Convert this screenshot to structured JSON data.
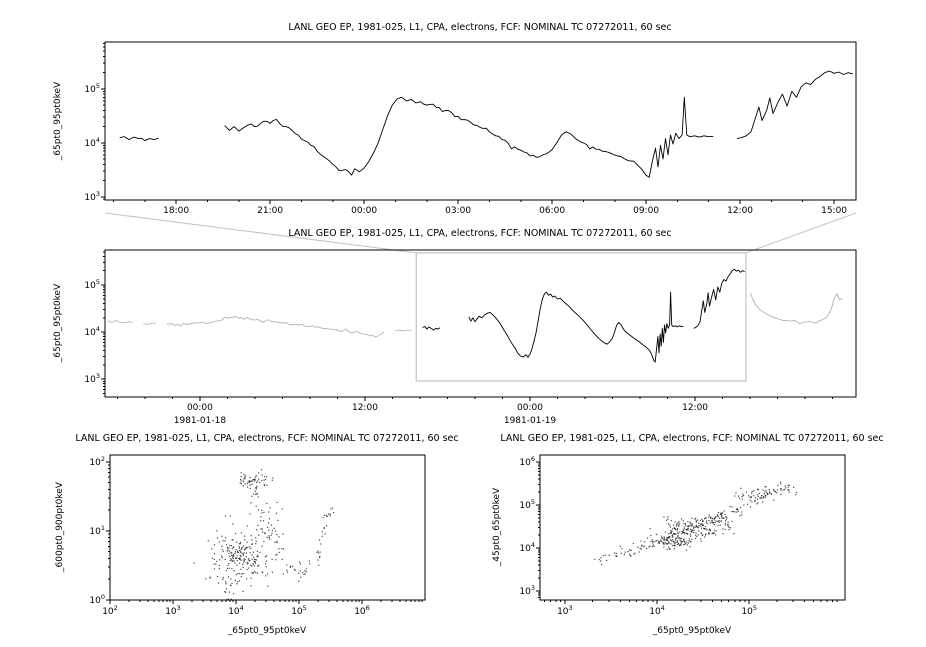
{
  "figure": {
    "background": "#ffffff",
    "foreground": "#000000",
    "context_gray": "#b3b3b3",
    "zoom_box_gray": "#c2c2c2",
    "scatter_dot": "#1a1a1a"
  },
  "chart_data": [
    {
      "type": "line",
      "panel": "top-timeseries",
      "title": "LANL GEO EP, 1981-025, L1, CPA, electrons, FCF: NOMINAL TC 07272011, 60 sec",
      "xlabel": "",
      "ylabel": "_65pt0_95pt0keV",
      "x_unit": "hours from 1981-01-18 00:00",
      "xlim": [
        15.73,
        39.7
      ],
      "ylim_log10": [
        2.94,
        5.87
      ],
      "yticks_log10": [
        3,
        4,
        5
      ],
      "xticks": [
        {
          "x": 18,
          "label": "18:00"
        },
        {
          "x": 21,
          "label": "21:00"
        },
        {
          "x": 24,
          "label": "00:00"
        },
        {
          "x": 27,
          "label": "03:00"
        },
        {
          "x": 30,
          "label": "06:00"
        },
        {
          "x": 33,
          "label": "09:00"
        },
        {
          "x": 36,
          "label": "12:00"
        },
        {
          "x": 39,
          "label": "15:00"
        }
      ],
      "minor_x_step": 1,
      "grid": false,
      "noise_log10": 0.03,
      "noise_seed": 3,
      "segments": [
        [
          [
            16.2,
            12500
          ],
          [
            16.35,
            13000
          ],
          [
            16.5,
            11500
          ],
          [
            16.65,
            12800
          ],
          [
            16.8,
            12000
          ],
          [
            17.0,
            11000
          ],
          [
            17.15,
            12000
          ],
          [
            17.3,
            11500
          ],
          [
            17.45,
            12300
          ]
        ],
        [
          [
            19.55,
            21000
          ],
          [
            19.7,
            17000
          ],
          [
            19.85,
            20000
          ],
          [
            20.0,
            16500
          ],
          [
            20.15,
            19000
          ],
          [
            20.3,
            21500
          ],
          [
            20.5,
            20000
          ],
          [
            20.7,
            23000
          ],
          [
            20.9,
            25000
          ],
          [
            21.1,
            26000
          ],
          [
            21.3,
            23000
          ],
          [
            21.5,
            20000
          ],
          [
            21.7,
            17000
          ],
          [
            21.9,
            14000
          ],
          [
            22.1,
            11000
          ],
          [
            22.3,
            9000
          ],
          [
            22.5,
            7000
          ],
          [
            22.7,
            5600
          ],
          [
            22.9,
            4600
          ],
          [
            23.1,
            3600
          ],
          [
            23.3,
            3100
          ],
          [
            23.5,
            2950
          ],
          [
            23.7,
            3300
          ],
          [
            23.85,
            2900
          ],
          [
            24.0,
            3400
          ],
          [
            24.15,
            4500
          ],
          [
            24.3,
            6500
          ],
          [
            24.45,
            10000
          ],
          [
            24.6,
            18000
          ],
          [
            24.75,
            32000
          ],
          [
            24.9,
            50000
          ],
          [
            25.05,
            65000
          ],
          [
            25.2,
            70000
          ],
          [
            25.35,
            60000
          ],
          [
            25.5,
            64000
          ],
          [
            25.65,
            55000
          ],
          [
            25.8,
            58000
          ],
          [
            26.0,
            50000
          ],
          [
            26.2,
            52000
          ],
          [
            26.4,
            45000
          ],
          [
            26.6,
            40000
          ],
          [
            26.8,
            36000
          ],
          [
            27.0,
            31000
          ],
          [
            27.2,
            27000
          ],
          [
            27.4,
            24000
          ],
          [
            27.6,
            21000
          ],
          [
            27.8,
            18500
          ],
          [
            28.0,
            16000
          ],
          [
            28.2,
            13500
          ],
          [
            28.4,
            11500
          ],
          [
            28.6,
            9800
          ],
          [
            28.8,
            8400
          ],
          [
            29.0,
            7300
          ],
          [
            29.2,
            6500
          ],
          [
            29.4,
            5900
          ],
          [
            29.6,
            5500
          ],
          [
            29.8,
            6200
          ],
          [
            30.0,
            7500
          ],
          [
            30.15,
            10000
          ],
          [
            30.3,
            14000
          ],
          [
            30.45,
            16000
          ],
          [
            30.6,
            14500
          ],
          [
            30.75,
            12000
          ],
          [
            30.9,
            10500
          ],
          [
            31.1,
            9300
          ],
          [
            31.3,
            8400
          ],
          [
            31.5,
            7600
          ],
          [
            31.7,
            6900
          ],
          [
            31.9,
            6300
          ],
          [
            32.1,
            5700
          ],
          [
            32.3,
            5100
          ],
          [
            32.5,
            4600
          ],
          [
            32.7,
            4000
          ],
          [
            32.85,
            3300
          ],
          [
            33.0,
            2500
          ],
          [
            33.1,
            2300
          ],
          [
            33.2,
            4500
          ],
          [
            33.3,
            8000
          ],
          [
            33.38,
            3600
          ],
          [
            33.46,
            9000
          ],
          [
            33.54,
            5000
          ],
          [
            33.62,
            12000
          ],
          [
            33.7,
            6000
          ],
          [
            33.78,
            14000
          ],
          [
            33.86,
            9500
          ],
          [
            33.95,
            15000
          ],
          [
            34.05,
            12000
          ],
          [
            34.15,
            14000
          ],
          [
            34.22,
            70000
          ],
          [
            34.3,
            14000
          ],
          [
            34.4,
            13000
          ],
          [
            34.55,
            13500
          ],
          [
            34.7,
            12800
          ],
          [
            34.85,
            13500
          ],
          [
            35.0,
            13000
          ],
          [
            35.15,
            13200
          ]
        ],
        [
          [
            35.9,
            12000
          ],
          [
            36.05,
            12500
          ],
          [
            36.2,
            13500
          ],
          [
            36.35,
            16000
          ],
          [
            36.5,
            30000
          ],
          [
            36.6,
            46000
          ],
          [
            36.7,
            26000
          ],
          [
            36.85,
            40000
          ],
          [
            36.95,
            68000
          ],
          [
            37.05,
            35000
          ],
          [
            37.2,
            55000
          ],
          [
            37.35,
            80000
          ],
          [
            37.5,
            48000
          ],
          [
            37.65,
            90000
          ],
          [
            37.8,
            70000
          ],
          [
            37.95,
            110000
          ],
          [
            38.1,
            130000
          ],
          [
            38.25,
            120000
          ],
          [
            38.4,
            150000
          ],
          [
            38.55,
            170000
          ],
          [
            38.7,
            200000
          ],
          [
            38.85,
            215000
          ],
          [
            39.0,
            195000
          ],
          [
            39.15,
            205000
          ],
          [
            39.3,
            185000
          ],
          [
            39.45,
            200000
          ],
          [
            39.6,
            190000
          ]
        ]
      ]
    },
    {
      "type": "line",
      "panel": "context-timeseries-with-zoom-box",
      "title": "LANL GEO EP, 1981-025, L1, CPA, electrons, FCF: NOMINAL TC 07272011, 60 sec",
      "xlabel": "",
      "ylabel": "_65pt0_95pt0keV",
      "x_unit": "hours from 1981-01-18 00:00",
      "xlim": [
        -6.9,
        47.7
      ],
      "ylim_log10": [
        2.62,
        5.74
      ],
      "yticks_log10": [
        3,
        4,
        5
      ],
      "xticks": [
        {
          "x": 0,
          "label": "00:00",
          "date": "1981-01-18"
        },
        {
          "x": 12,
          "label": "12:00"
        },
        {
          "x": 24,
          "label": "00:00",
          "date": "1981-01-19"
        },
        {
          "x": 36,
          "label": "12:00"
        }
      ],
      "minor_x_step": 2,
      "grid": false,
      "noise_log10": 0.025,
      "noise_seed": 5,
      "zoom_series_same_as_chart": 0,
      "zoom_box": {
        "x0": 15.73,
        "x1": 39.7,
        "y0_log10": 2.96,
        "y1_log10": 5.68
      },
      "context_segments": [
        [
          [
            -6.7,
            17000
          ],
          [
            -6.4,
            16000
          ],
          [
            -6.1,
            17500
          ],
          [
            -5.8,
            16000
          ],
          [
            -5.5,
            15500
          ],
          [
            -5.2,
            16500
          ],
          [
            -4.9,
            16000
          ]
        ],
        [
          [
            -4.1,
            15000
          ],
          [
            -3.8,
            14500
          ],
          [
            -3.5,
            15500
          ],
          [
            -3.2,
            14800
          ]
        ],
        [
          [
            -2.4,
            14500
          ],
          [
            -2.0,
            15000
          ],
          [
            -1.6,
            14500
          ],
          [
            -1.2,
            15200
          ],
          [
            -0.8,
            14800
          ],
          [
            -0.4,
            15500
          ],
          [
            0.0,
            15800
          ],
          [
            0.4,
            15200
          ],
          [
            0.8,
            16000
          ],
          [
            1.2,
            17000
          ],
          [
            1.6,
            18000
          ],
          [
            2.0,
            19500
          ],
          [
            2.4,
            20500
          ],
          [
            2.8,
            19500
          ],
          [
            3.2,
            18500
          ],
          [
            3.6,
            19000
          ],
          [
            4.0,
            18000
          ],
          [
            4.4,
            17000
          ],
          [
            4.8,
            17500
          ],
          [
            5.2,
            16500
          ],
          [
            5.6,
            16000
          ],
          [
            6.0,
            15500
          ],
          [
            6.4,
            15000
          ],
          [
            6.8,
            14500
          ],
          [
            7.2,
            14000
          ],
          [
            7.6,
            13500
          ],
          [
            8.0,
            13000
          ],
          [
            8.4,
            12600
          ],
          [
            8.8,
            12200
          ],
          [
            9.2,
            11800
          ],
          [
            9.6,
            11400
          ],
          [
            10.0,
            11000
          ],
          [
            10.4,
            10600
          ],
          [
            10.8,
            10200
          ],
          [
            11.2,
            9800
          ],
          [
            11.6,
            9400
          ],
          [
            12.0,
            9000
          ],
          [
            12.4,
            8300
          ],
          [
            12.8,
            7800
          ],
          [
            13.1,
            8800
          ],
          [
            13.4,
            10000
          ]
        ],
        [
          [
            14.2,
            10500
          ],
          [
            14.5,
            11000
          ],
          [
            14.8,
            10500
          ],
          [
            15.1,
            11000
          ],
          [
            15.4,
            10800
          ]
        ],
        [
          [
            40.0,
            68000
          ],
          [
            40.2,
            50000
          ],
          [
            40.4,
            38000
          ],
          [
            40.7,
            30000
          ],
          [
            41.0,
            26000
          ],
          [
            41.3,
            23000
          ],
          [
            41.6,
            21000
          ],
          [
            41.9,
            19500
          ],
          [
            42.2,
            18500
          ],
          [
            42.6,
            17500
          ],
          [
            43.0,
            17000
          ],
          [
            43.4,
            16500
          ],
          [
            43.8,
            16000
          ],
          [
            44.2,
            16500
          ],
          [
            44.6,
            16000
          ],
          [
            45.0,
            17000
          ],
          [
            45.3,
            18500
          ],
          [
            45.6,
            21000
          ],
          [
            45.9,
            30000
          ],
          [
            46.1,
            50000
          ],
          [
            46.3,
            65000
          ],
          [
            46.5,
            48000
          ],
          [
            46.7,
            52000
          ]
        ]
      ]
    },
    {
      "type": "scatter",
      "panel": "scatter-600-900-vs-65-95",
      "title": "LANL GEO EP, 1981-025, L1, CPA, electrons, FCF: NOMINAL TC 07272011, 60 sec",
      "xlabel": "_65pt0_95pt0keV",
      "ylabel": "_600pt0_900pt0keV",
      "xlim_log10": [
        2,
        7
      ],
      "ylim_log10": [
        0,
        2.1
      ],
      "xticks_log10": [
        2,
        3,
        4,
        5,
        6
      ],
      "yticks_log10": [
        0,
        1,
        2
      ],
      "grid": false,
      "seed": 7,
      "clusters": [
        {
          "cx": 4.08,
          "cy": 0.66,
          "sx": 0.2,
          "sy": 0.17,
          "n": 150
        },
        {
          "cx": 4.3,
          "cy": 0.7,
          "sx": 0.28,
          "sy": 0.22,
          "n": 60
        },
        {
          "cx": 4.33,
          "cy": 1.74,
          "sx": 0.13,
          "sy": 0.06,
          "n": 40
        },
        {
          "cx": 4.15,
          "cy": 1.72,
          "sx": 0.06,
          "sy": 0.05,
          "n": 14
        },
        {
          "cx": 3.82,
          "cy": 0.38,
          "sx": 0.22,
          "sy": 0.18,
          "n": 30
        },
        {
          "cx": 4.6,
          "cy": 1.0,
          "sx": 0.12,
          "sy": 0.15,
          "n": 18
        },
        {
          "cx": 4.4,
          "cy": 1.3,
          "sx": 0.1,
          "sy": 0.1,
          "n": 12
        }
      ],
      "bands": [
        {
          "x0": 5.0,
          "y0": 0.35,
          "x1": 5.3,
          "y1": 0.6,
          "n": 14,
          "jit": 0.05
        },
        {
          "x0": 5.3,
          "y0": 0.6,
          "x1": 5.42,
          "y1": 1.22,
          "n": 16,
          "jit": 0.04
        },
        {
          "x0": 5.42,
          "y0": 1.22,
          "x1": 5.55,
          "y1": 1.3,
          "n": 8,
          "jit": 0.04
        },
        {
          "x0": 4.75,
          "y0": 0.5,
          "x1": 5.0,
          "y1": 0.4,
          "n": 10,
          "jit": 0.06
        },
        {
          "x0": 4.3,
          "y0": 1.45,
          "x1": 4.35,
          "y1": 1.7,
          "n": 10,
          "jit": 0.05
        },
        {
          "x0": 3.9,
          "y0": 0.2,
          "x1": 4.5,
          "y1": 0.3,
          "n": 12,
          "jit": 0.15
        }
      ]
    },
    {
      "type": "scatter",
      "panel": "scatter-45-65-vs-65-95",
      "title": "LANL GEO EP, 1981-025, L1, CPA, electrons, FCF: NOMINAL TC 07272011, 60 sec",
      "xlabel": "_65pt0_95pt0keV",
      "ylabel": "_45pt0_65pt0keV",
      "xlim_log10": [
        2.73,
        6.04
      ],
      "ylim_log10": [
        2.79,
        6.16
      ],
      "xticks_log10": [
        3,
        4,
        5
      ],
      "yticks_log10": [
        3,
        4,
        5,
        6
      ],
      "grid": false,
      "seed": 11,
      "clusters": [
        {
          "cx": 4.35,
          "cy": 4.45,
          "sx": 0.18,
          "sy": 0.12,
          "n": 80
        },
        {
          "cx": 5.05,
          "cy": 5.25,
          "sx": 0.1,
          "sy": 0.07,
          "n": 30
        },
        {
          "cx": 5.3,
          "cy": 5.35,
          "sx": 0.08,
          "sy": 0.05,
          "n": 12
        },
        {
          "cx": 4.2,
          "cy": 4.15,
          "sx": 0.1,
          "sy": 0.08,
          "n": 40
        }
      ],
      "bands": [
        {
          "x0": 3.35,
          "y0": 3.72,
          "x1": 3.95,
          "y1": 4.1,
          "n": 45,
          "jit": 0.07
        },
        {
          "x0": 3.95,
          "y0": 4.1,
          "x1": 4.75,
          "y1": 4.75,
          "n": 170,
          "jit": 0.09
        },
        {
          "x0": 4.75,
          "y0": 4.75,
          "x1": 5.35,
          "y1": 5.45,
          "n": 55,
          "jit": 0.07
        },
        {
          "x0": 4.1,
          "y0": 4.0,
          "x1": 4.8,
          "y1": 4.5,
          "n": 45,
          "jit": 0.05
        },
        {
          "x0": 5.35,
          "y0": 5.45,
          "x1": 5.5,
          "y1": 5.3,
          "n": 10,
          "jit": 0.04
        }
      ]
    }
  ]
}
